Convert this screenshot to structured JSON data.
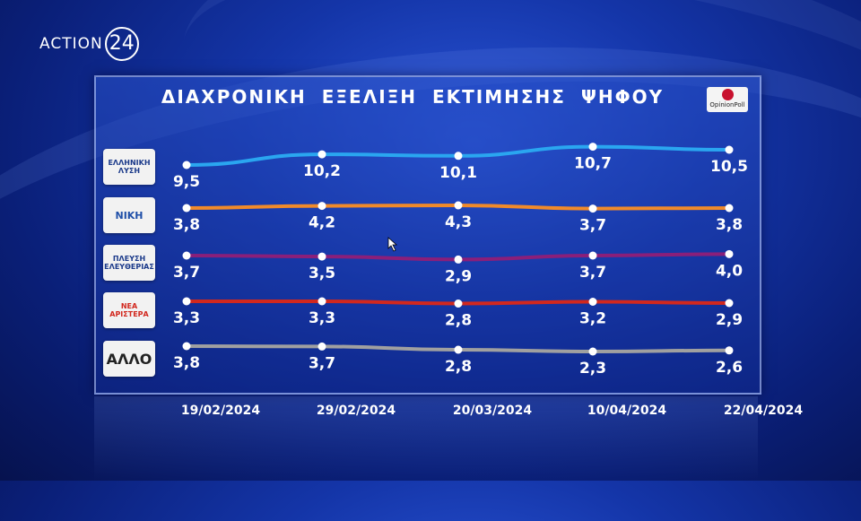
{
  "channel_logo": {
    "word": "ACTION",
    "number": "24"
  },
  "title": "ΔΙΑΧΡΟΝΙΚΗ ΕΞΕΛΙΞΗ ΕΚΤΙΜΗΣΗΣ ΨΗΦΟΥ",
  "pollster_logo": "OpinionPoll",
  "parties": [
    {
      "label": "ΕΛΛΗΝΙΚΗ ΛΥΣΗ"
    },
    {
      "label": "ΝΙΚΗ"
    },
    {
      "label": "ΠΛΕΥΣΗ ΕΛΕΥΘΕΡΙΑΣ"
    },
    {
      "label": "ΝΕΑ ΑΡΙΣΤΕΡΑ"
    },
    {
      "label": "ΑΛΛΟ"
    }
  ],
  "chart_data": {
    "type": "line",
    "title": "ΔΙΑΧΡΟΝΙΚΗ ΕΞΕΛΙΞΗ ΕΚΤΙΜΗΣΗΣ ΨΗΦΟΥ",
    "categories": [
      "19/02/2024",
      "29/02/2024",
      "20/03/2024",
      "10/04/2024",
      "22/04/2024"
    ],
    "series": [
      {
        "name": "ΕΛΛΗΝΙΚΗ ΛΥΣΗ",
        "color": "#2aa6f0",
        "values": [
          9.5,
          10.2,
          10.1,
          10.7,
          10.5
        ],
        "labels": [
          "9,5",
          "10,2",
          "10,1",
          "10,7",
          "10,5"
        ]
      },
      {
        "name": "ΝΙΚΗ",
        "color": "#f08a2a",
        "values": [
          3.8,
          4.2,
          4.3,
          3.7,
          3.8
        ],
        "labels": [
          "3,8",
          "4,2",
          "4,3",
          "3,7",
          "3,8"
        ]
      },
      {
        "name": "ΠΛΕΥΣΗ ΕΛΕΥΘΕΡΙΑΣ",
        "color": "#8a1f7a",
        "values": [
          3.7,
          3.5,
          2.9,
          3.7,
          4.0
        ],
        "labels": [
          "3,7",
          "3,5",
          "2,9",
          "3,7",
          "4,0"
        ]
      },
      {
        "name": "ΝΕΑ ΑΡΙΣΤΕΡΑ",
        "color": "#d2281e",
        "values": [
          3.3,
          3.3,
          2.8,
          3.2,
          2.9
        ],
        "labels": [
          "3,3",
          "3,3",
          "2,8",
          "3,2",
          "2,9"
        ]
      },
      {
        "name": "ΑΛΛΟ",
        "color": "#a0a0a0",
        "values": [
          3.8,
          3.7,
          2.8,
          2.3,
          2.6
        ],
        "labels": [
          "3,8",
          "3,7",
          "2,8",
          "2,3",
          "2,6"
        ]
      }
    ],
    "grid": false,
    "legend": "left (party logos)"
  }
}
